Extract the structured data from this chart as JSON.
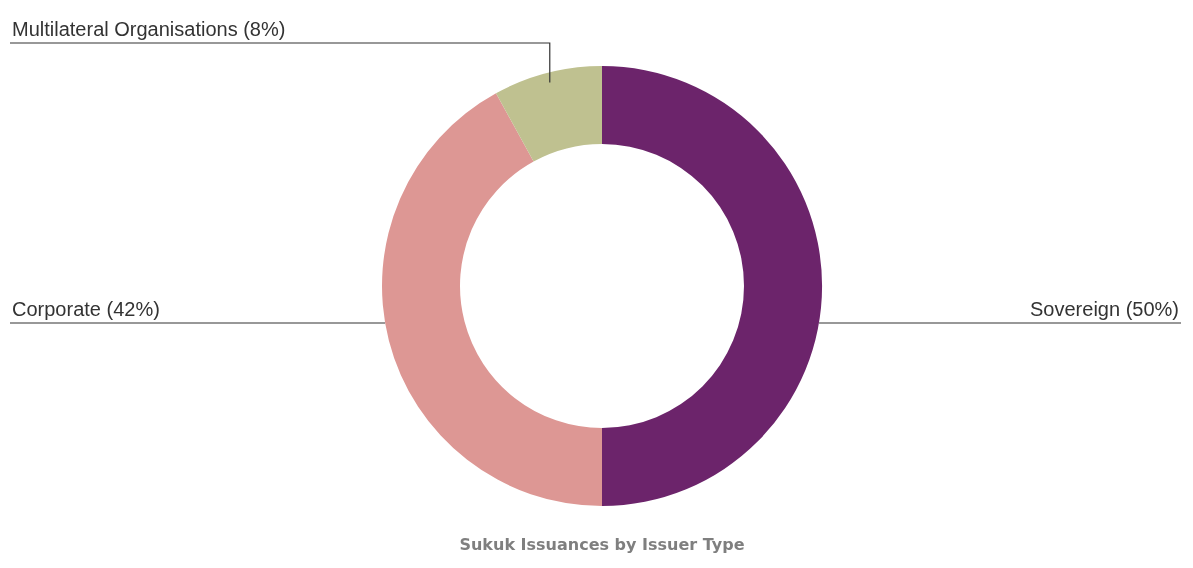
{
  "chart_data": {
    "type": "donut",
    "title": "Sukuk Issuances by Issuer Type",
    "categories": [
      "Sovereign",
      "Corporate",
      "Multilateral Organisations"
    ],
    "values": [
      50,
      42,
      8
    ],
    "value_labels": [
      "(50%)",
      "(42%)",
      "(8%)"
    ],
    "colors": [
      "#6c246b",
      "#dd9794",
      "#bfc190"
    ]
  }
}
